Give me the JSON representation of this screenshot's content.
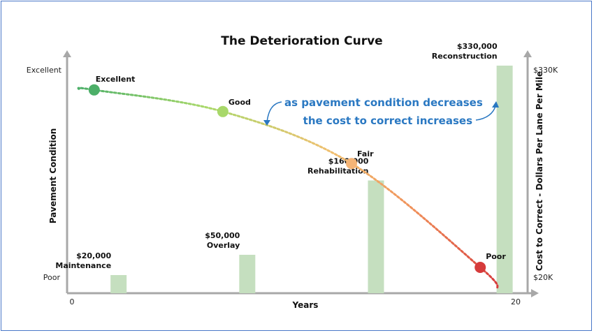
{
  "chart_data": {
    "type": "line",
    "title": "The Deterioration Curve",
    "xlabel": "Years",
    "ylabel_left": "Pavement Condition",
    "ylabel_right": "Cost to Correct - Dollars Per Lane Per Mile",
    "x_ticks": [
      "0",
      "20"
    ],
    "xlim": [
      0,
      20
    ],
    "y_left_ticks": [
      "Excellent",
      "Poor"
    ],
    "y_right_ticks": [
      "$330K",
      "$20K"
    ],
    "y_right_lim": [
      20000,
      330000
    ],
    "condition_points": [
      {
        "label": "Excellent",
        "year": 1,
        "condition": 0.92,
        "color": "#4caf68"
      },
      {
        "label": "Good",
        "year": 6.8,
        "condition": 0.82,
        "color": "#a8d86a"
      },
      {
        "label": "Fair",
        "year": 12.6,
        "condition": 0.58,
        "color": "#f4b476"
      },
      {
        "label": "Poor",
        "year": 18.4,
        "condition": 0.1,
        "color": "#d63b3b"
      }
    ],
    "curve_end": {
      "year": 19.2,
      "condition": 0.0
    },
    "cost_bars": [
      {
        "year": 2.1,
        "cost": 20000,
        "value_label": "$20,000",
        "name": "Maintenance"
      },
      {
        "year": 7.9,
        "cost": 50000,
        "value_label": "$50,000",
        "name": "Overlay"
      },
      {
        "year": 13.7,
        "cost": 160000,
        "value_label": "$160,000",
        "name": "Rehabilitation"
      },
      {
        "year": 19.5,
        "cost": 330000,
        "value_label": "$330,000",
        "name": "Reconstruction"
      }
    ],
    "annotation": [
      "as pavement condition decreases",
      "the cost to correct increases"
    ],
    "colors": {
      "bar": "#c5dfbf",
      "annotation": "#2a78c2",
      "axis": "#a8a8a8"
    }
  }
}
